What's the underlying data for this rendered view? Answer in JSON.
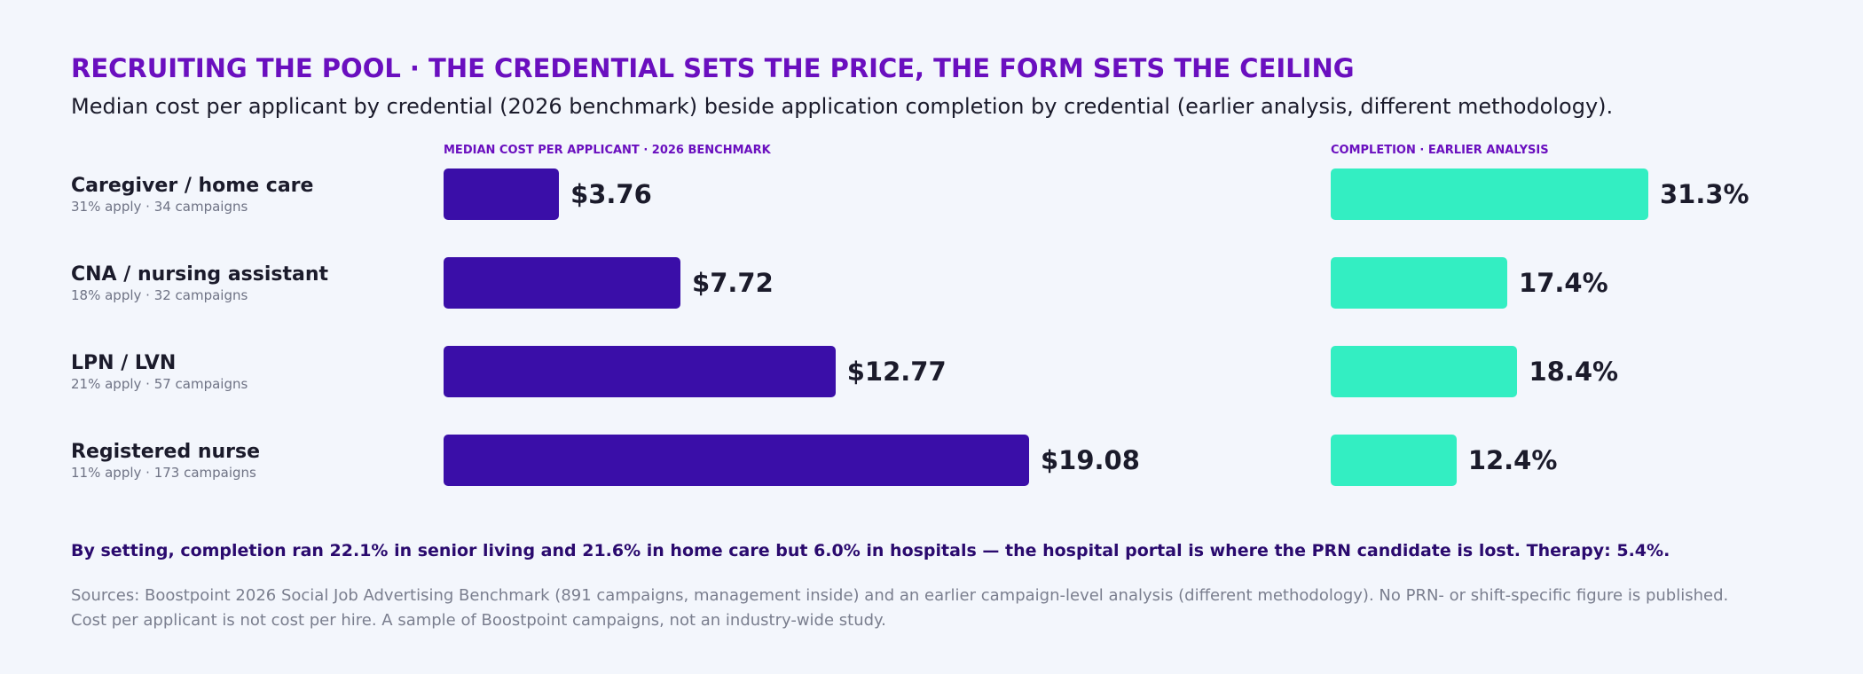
{
  "header": {
    "title": "RECRUITING THE POOL · THE CREDENTIAL SETS THE PRICE, THE FORM SETS THE CEILING",
    "subtitle": "Median cost per applicant by credential (2026 benchmark) beside application completion by credential (earlier analysis, different methodology)."
  },
  "colors": {
    "cost_bar": "#3a0ea8",
    "completion_bar": "#33eec2",
    "accent": "#6a0fbf"
  },
  "chart_data": [
    {
      "type": "bar",
      "orientation": "horizontal",
      "title": "MEDIAN COST PER APPLICANT · 2026 BENCHMARK",
      "categories": [
        "Caregiver / home care",
        "CNA / nursing assistant",
        "LPN / LVN",
        "Registered nurse"
      ],
      "category_details": [
        "31% apply · 34 campaigns",
        "18% apply · 32 campaigns",
        "21% apply · 57 campaigns",
        "11% apply · 173 campaigns"
      ],
      "values": [
        3.76,
        7.72,
        12.77,
        19.08
      ],
      "value_labels": [
        "$3.76",
        "$7.72",
        "$12.77",
        "$19.08"
      ],
      "xlim": [
        0,
        25
      ]
    },
    {
      "type": "bar",
      "orientation": "horizontal",
      "title": "COMPLETION · EARLIER ANALYSIS",
      "categories": [
        "Caregiver / home care",
        "CNA / nursing assistant",
        "LPN / LVN",
        "Registered nurse"
      ],
      "values": [
        31.3,
        17.4,
        18.4,
        12.4
      ],
      "value_labels": [
        "31.3%",
        "17.4%",
        "18.4%",
        "12.4%"
      ],
      "xlim": [
        0,
        40
      ]
    }
  ],
  "footer": {
    "note": "By setting, completion ran 22.1% in senior living and 21.6% in home care but 6.0% in hospitals — the hospital portal is where the PRN candidate is lost. Therapy: 5.4%.",
    "source_line1": "Sources: Boostpoint 2026 Social Job Advertising Benchmark (891 campaigns, management inside) and an earlier campaign-level analysis (different methodology). No PRN- or shift-specific figure is published.",
    "source_line2": "Cost per applicant is not cost per hire. A sample of Boostpoint campaigns, not an industry-wide study."
  }
}
